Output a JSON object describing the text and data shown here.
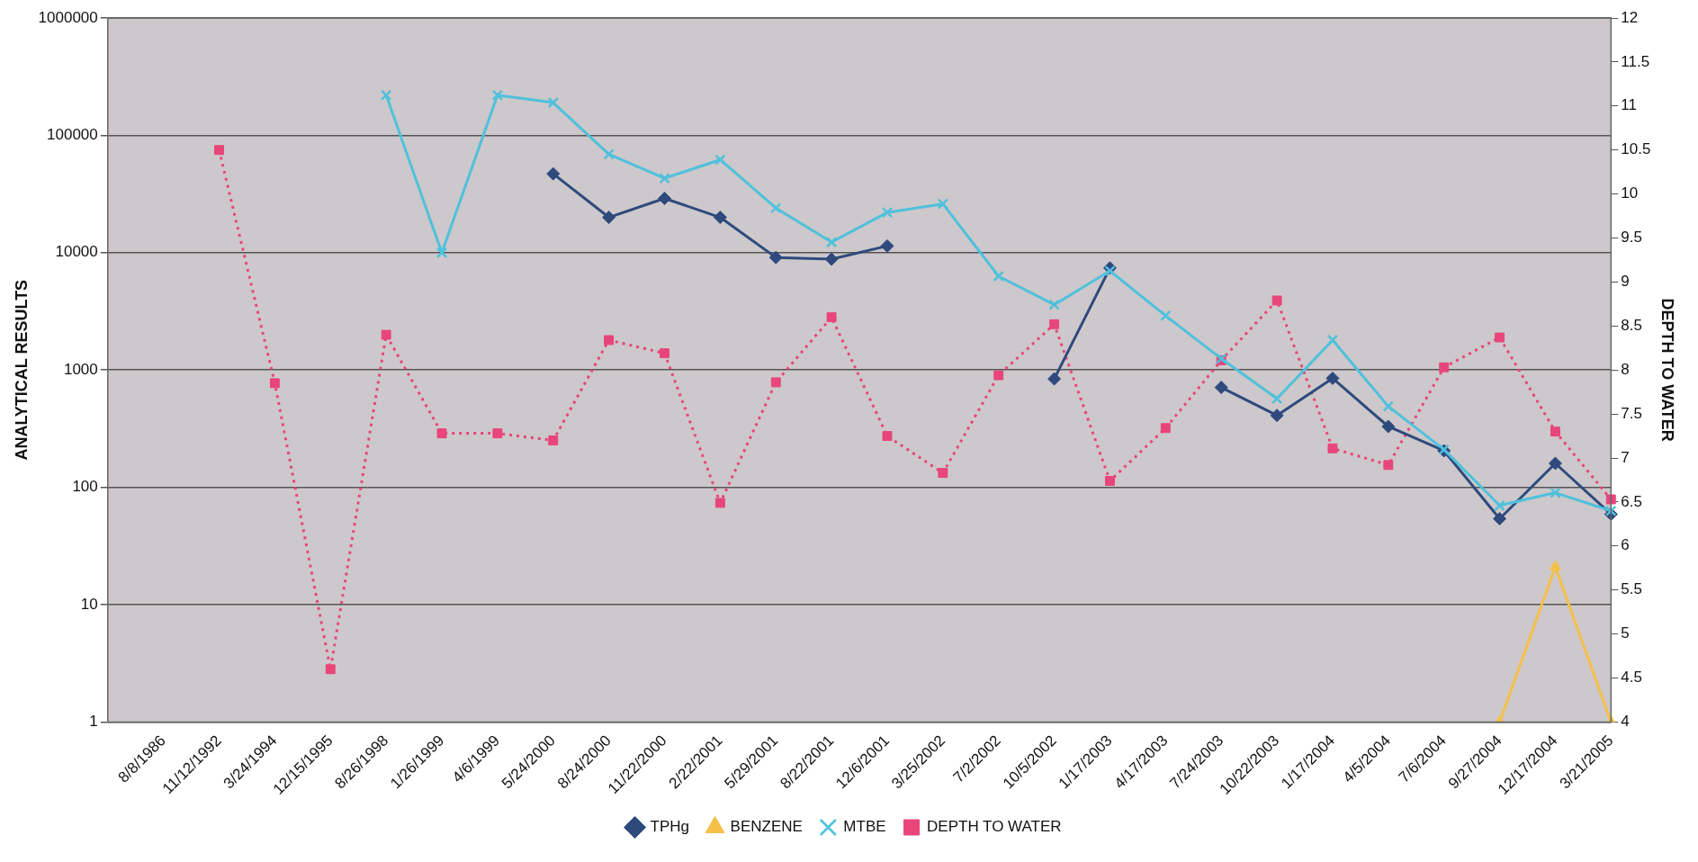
{
  "chart_data": {
    "type": "line",
    "ylabel": "ANALYTICAL RESULTS",
    "y2label": "DEPTH TO WATER",
    "categories": [
      null,
      "8/8/1986",
      "11/12/1992",
      "3/24/1994",
      "12/15/1995",
      "8/26/1998",
      "1/26/1999",
      "4/6/1999",
      "5/24/2000",
      "8/24/2000",
      "11/22/2000",
      "2/22/2001",
      "5/29/2001",
      "8/22/2001",
      "12/6/2001",
      "3/25/2002",
      "7/2/2002",
      "10/5/2002",
      "1/17/2003",
      "4/17/2003",
      "7/24/2003",
      "10/22/2003",
      "1/17/2004",
      "4/5/2004",
      "7/6/2004",
      "9/27/2004",
      "12/17/2004",
      "3/21/2005"
    ],
    "series": [
      {
        "name": "TPHg",
        "color": "#2e4a7d",
        "marker": "diamond",
        "line_style": "solid",
        "values": [
          null,
          null,
          null,
          null,
          null,
          null,
          null,
          null,
          47000,
          20000,
          29000,
          20000,
          9100,
          8800,
          11400,
          null,
          null,
          840,
          7400,
          null,
          710,
          410,
          850,
          330,
          205,
          54,
          160,
          59
        ]
      },
      {
        "name": "BENZENE",
        "color": "#f4c04a",
        "marker": "triangle",
        "line_style": "solid",
        "values": [
          null,
          null,
          null,
          null,
          null,
          null,
          null,
          null,
          null,
          null,
          null,
          null,
          null,
          null,
          null,
          null,
          null,
          null,
          null,
          null,
          null,
          null,
          null,
          null,
          null,
          1,
          21,
          1
        ]
      },
      {
        "name": "MTBE",
        "color": "#4fc1dc",
        "marker": "cross",
        "line_style": "solid",
        "values": [
          null,
          null,
          null,
          null,
          null,
          220000,
          10000,
          220000,
          190000,
          69000,
          43000,
          62000,
          24000,
          12300,
          22000,
          26000,
          6300,
          3600,
          7000,
          2900,
          1250,
          570,
          1800,
          490,
          210,
          70,
          90,
          63
        ]
      },
      {
        "name": "DEPTH TO WATER",
        "color": "#e8457a",
        "marker": "square",
        "line_style": "dotted",
        "axis": "y2",
        "values": [
          null,
          null,
          10.5,
          7.85,
          4.6,
          8.4,
          7.28,
          7.28,
          7.2,
          8.34,
          8.19,
          6.49,
          7.86,
          8.6,
          7.25,
          6.83,
          7.94,
          8.52,
          6.74,
          7.34,
          8.11,
          8.79,
          7.11,
          6.92,
          8.03,
          8.37,
          7.3,
          6.53
        ]
      }
    ],
    "log": "y",
    "ylim": [
      1,
      1000000
    ],
    "yticks": [
      1,
      10,
      100,
      1000,
      10000,
      100000,
      1000000
    ],
    "y2lim": [
      4,
      12
    ],
    "y2ticks": [
      4,
      4.5,
      5,
      5.5,
      6,
      6.5,
      7,
      7.5,
      8,
      8.5,
      9,
      9.5,
      10,
      10.5,
      11,
      11.5,
      12
    ],
    "grid": "y",
    "legend": "bottom"
  }
}
